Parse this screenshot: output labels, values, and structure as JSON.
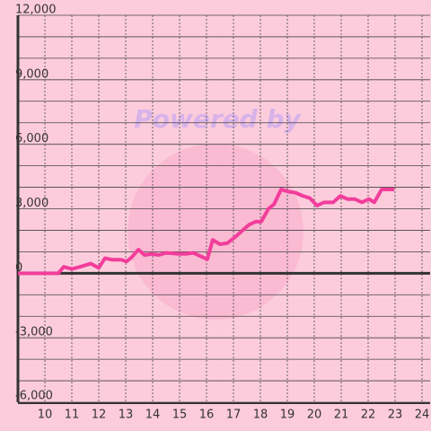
{
  "chart_data": {
    "type": "line",
    "watermark": "Powered by",
    "x": [
      9,
      10.5,
      10.7,
      11,
      11.3,
      11.7,
      12,
      12.23,
      12.5,
      12.83,
      13.03,
      13.23,
      13.47,
      13.7,
      13.97,
      14.23,
      14.5,
      14.97,
      15.23,
      15.5,
      15.77,
      16.03,
      16.23,
      16.5,
      16.77,
      17.03,
      17.3,
      17.57,
      17.83,
      18.03,
      18.3,
      18.5,
      18.77,
      19.03,
      19.3,
      19.57,
      19.83,
      20.1,
      20.37,
      20.7,
      20.97,
      21.23,
      21.5,
      21.77,
      22.03,
      22.23,
      22.5,
      22.97
    ],
    "series": [
      {
        "color": "#f23d9b",
        "values": [
          0,
          0,
          300,
          200,
          300,
          450,
          250,
          700,
          630,
          630,
          550,
          750,
          1100,
          850,
          900,
          850,
          950,
          900,
          900,
          950,
          800,
          650,
          1550,
          1350,
          1400,
          1650,
          1950,
          2250,
          2400,
          2400,
          3000,
          3200,
          3900,
          3800,
          3750,
          3600,
          3500,
          3150,
          3300,
          3300,
          3600,
          3450,
          3450,
          3300,
          3450,
          3300,
          3900,
          3900
        ]
      }
    ],
    "xlim": [
      9,
      24.3
    ],
    "xticks": [
      10,
      11,
      12,
      13,
      14,
      15,
      16,
      17,
      18,
      19,
      20,
      21,
      22,
      23,
      24
    ],
    "ylim": [
      -6000,
      12000
    ],
    "yticks": [
      {
        "value": -6000,
        "label": "-6,000"
      },
      {
        "value": -3000,
        "label": "-3,000"
      },
      0,
      {
        "value": 3000,
        "label": "3,000"
      },
      {
        "value": 6000,
        "label": "6,000"
      },
      {
        "value": 9000,
        "label": "9,000"
      },
      {
        "value": 12000,
        "label": "12,000"
      }
    ],
    "minor_yticks": [
      -5000,
      -4000,
      -2000,
      -1000,
      1000,
      2000,
      4000,
      5000,
      7000,
      8000,
      10000,
      11000
    ],
    "grid": true
  }
}
